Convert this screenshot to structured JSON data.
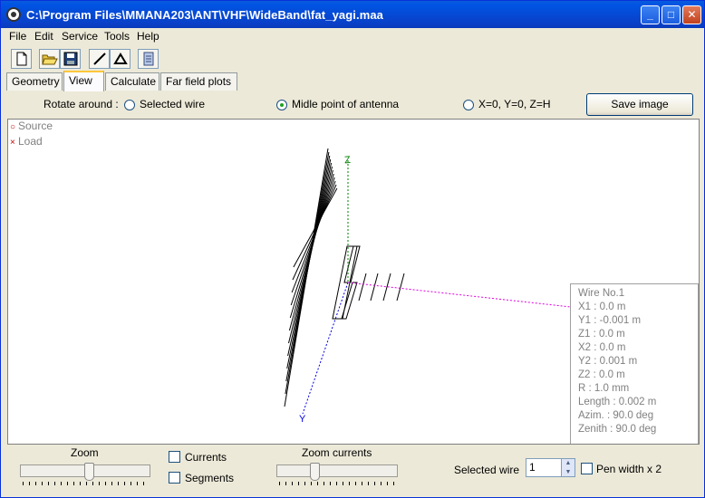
{
  "window": {
    "title": "C:\\Program Files\\MMANA203\\ANT\\VHF\\WideBand\\fat_yagi.maa",
    "minimize": "_",
    "maximize": "□",
    "close": "✕"
  },
  "menu": [
    "File",
    "Edit",
    "Service",
    "Tools",
    "Help"
  ],
  "toolbar_icons": [
    "new-file-icon",
    "open-folder-icon",
    "save-disk-icon",
    "draw-line-icon",
    "triangle-icon",
    "database-icon"
  ],
  "tabs": [
    "Geometry",
    "View",
    "Calculate",
    "Far field plots"
  ],
  "active_tab": "View",
  "rotate": {
    "label": "Rotate around :",
    "options": [
      "Selected wire",
      "Midle point of antenna",
      "X=0, Y=0, Z=H"
    ],
    "selected": "Midle point of antenna"
  },
  "save_image": "Save image",
  "legend": {
    "source_mark": "○",
    "source": "Source",
    "load_mark": "×",
    "load": "Load"
  },
  "axes": {
    "z": "Z",
    "y": "Y"
  },
  "wire_info": [
    "Wire No.1",
    "X1   :  0.0 m",
    "Y1   :  -0.001 m",
    "Z1   :  0.0 m",
    "X2   :  0.0 m",
    "Y2   :  0.001 m",
    "Z2   :  0.0 m",
    "R    :  1.0 mm",
    "Length  :  0.002 m",
    "Azim.   :  90.0 deg",
    "Zenith  :  90.0 deg"
  ],
  "bottom": {
    "zoom": "Zoom",
    "currents": "Currents",
    "segments": "Segments",
    "zoom_currents": "Zoom currents",
    "selected_wire_label": "Selected wire",
    "selected_wire_value": "1",
    "pen_width": "Pen width x 2"
  },
  "colors": {
    "title_bar": "#0054e3",
    "axis_z": "#008000",
    "axis_x": "#e000e0",
    "axis_y": "#0000e0"
  }
}
